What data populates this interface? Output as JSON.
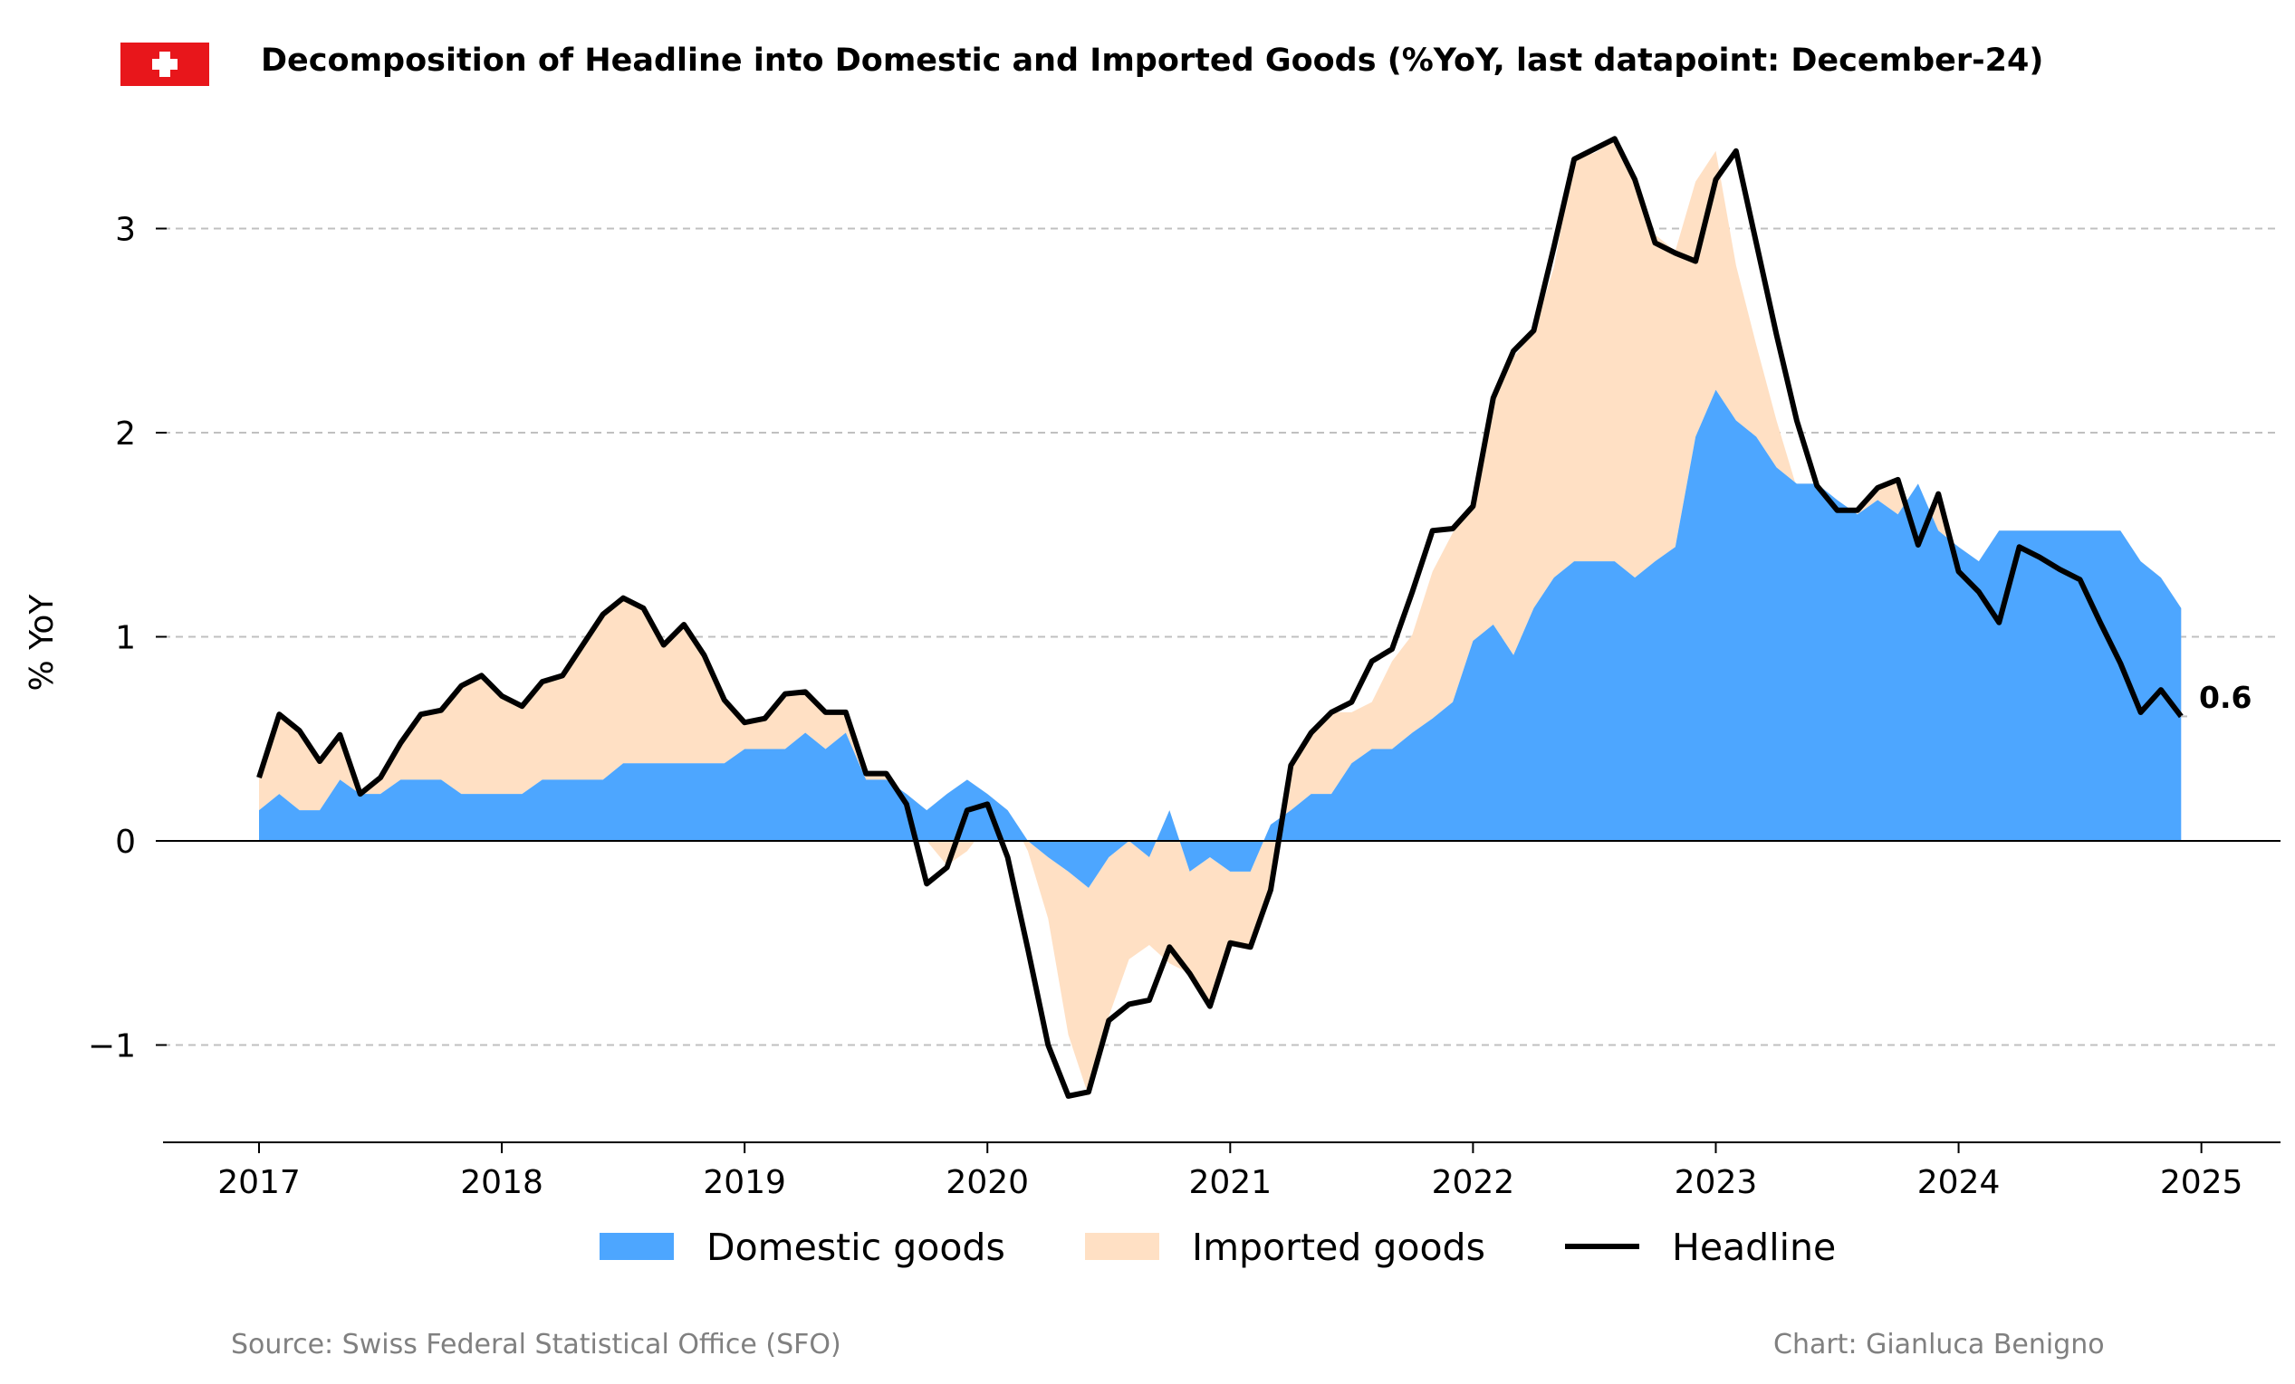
{
  "chart_data": {
    "type": "area",
    "title": "Decomposition of Headline into Domestic and Imported Goods (%YoY, last datapoint: December-24)",
    "ylabel": "% YoY",
    "xlabel": "",
    "xlim": [
      "2016-08",
      "2025-03"
    ],
    "ylim": [
      -1.5,
      3.5
    ],
    "x_ticks": [
      "2017",
      "2018",
      "2019",
      "2020",
      "2021",
      "2022",
      "2023",
      "2024",
      "2025"
    ],
    "y_ticks": [
      -1,
      0,
      1,
      2,
      3
    ],
    "y_tick_labels": [
      "−1",
      "0",
      "1",
      "2",
      "3"
    ],
    "grid": "horizontal dashed",
    "legend_position": "bottom-center",
    "colors": {
      "domestic": "#4da6ff",
      "imported": "#ffe0c4",
      "headline": "#000000",
      "grid": "#c0c0c0",
      "flag_red": "#e8161b",
      "footer": "#808080"
    },
    "start_month": "2017-01",
    "x": [
      "2017-01",
      "2017-02",
      "2017-03",
      "2017-04",
      "2017-05",
      "2017-06",
      "2017-07",
      "2017-08",
      "2017-09",
      "2017-10",
      "2017-11",
      "2017-12",
      "2018-01",
      "2018-02",
      "2018-03",
      "2018-04",
      "2018-05",
      "2018-06",
      "2018-07",
      "2018-08",
      "2018-09",
      "2018-10",
      "2018-11",
      "2018-12",
      "2019-01",
      "2019-02",
      "2019-03",
      "2019-04",
      "2019-05",
      "2019-06",
      "2019-07",
      "2019-08",
      "2019-09",
      "2019-10",
      "2019-11",
      "2019-12",
      "2020-01",
      "2020-02",
      "2020-03",
      "2020-04",
      "2020-05",
      "2020-06",
      "2020-07",
      "2020-08",
      "2020-09",
      "2020-10",
      "2020-11",
      "2020-12",
      "2021-01",
      "2021-02",
      "2021-03",
      "2021-04",
      "2021-05",
      "2021-06",
      "2021-07",
      "2021-08",
      "2021-09",
      "2021-10",
      "2021-11",
      "2021-12",
      "2022-01",
      "2022-02",
      "2022-03",
      "2022-04",
      "2022-05",
      "2022-06",
      "2022-07",
      "2022-08",
      "2022-09",
      "2022-10",
      "2022-11",
      "2022-12",
      "2023-01",
      "2023-02",
      "2023-03",
      "2023-04",
      "2023-05",
      "2023-06",
      "2023-07",
      "2023-08",
      "2023-09",
      "2023-10",
      "2023-11",
      "2023-12",
      "2024-01",
      "2024-02",
      "2024-03",
      "2024-04",
      "2024-05",
      "2024-06",
      "2024-07",
      "2024-08",
      "2024-09",
      "2024-10",
      "2024-11",
      "2024-12"
    ],
    "series": [
      {
        "name": "Domestic goods",
        "type": "area",
        "values": [
          0.15,
          0.23,
          0.15,
          0.15,
          0.3,
          0.23,
          0.23,
          0.3,
          0.3,
          0.3,
          0.23,
          0.23,
          0.23,
          0.23,
          0.3,
          0.3,
          0.3,
          0.3,
          0.38,
          0.38,
          0.38,
          0.38,
          0.38,
          0.38,
          0.45,
          0.45,
          0.45,
          0.53,
          0.45,
          0.53,
          0.3,
          0.3,
          0.23,
          0.15,
          0.23,
          0.3,
          0.23,
          0.15,
          0.0,
          -0.08,
          -0.15,
          -0.23,
          -0.08,
          0.0,
          -0.08,
          0.15,
          -0.15,
          -0.08,
          -0.15,
          -0.15,
          0.08,
          0.15,
          0.23,
          0.23,
          0.38,
          0.45,
          0.45,
          0.53,
          0.6,
          0.68,
          0.98,
          1.06,
          0.91,
          1.14,
          1.29,
          1.37,
          1.37,
          1.37,
          1.29,
          1.37,
          1.44,
          1.98,
          2.21,
          2.06,
          1.98,
          1.83,
          1.75,
          1.75,
          1.67,
          1.6,
          1.67,
          1.6,
          1.75,
          1.52,
          1.44,
          1.37,
          1.52,
          1.52,
          1.52,
          1.52,
          1.52,
          1.52,
          1.52,
          1.37,
          1.29,
          1.14
        ]
      },
      {
        "name": "Imported goods",
        "type": "area",
        "values": [
          0.16,
          0.39,
          0.39,
          0.24,
          0.22,
          0.0,
          0.08,
          0.18,
          0.32,
          0.34,
          0.53,
          0.58,
          0.48,
          0.43,
          0.48,
          0.51,
          0.66,
          0.81,
          0.81,
          0.76,
          0.58,
          0.68,
          0.53,
          0.31,
          0.13,
          0.15,
          0.27,
          0.2,
          0.18,
          0.1,
          0.03,
          0.03,
          -0.05,
          -0.15,
          -0.35,
          -0.35,
          -0.15,
          0.0,
          -0.05,
          -0.3,
          -0.8,
          -1.02,
          -0.78,
          -0.58,
          -0.43,
          -0.75,
          -0.5,
          -0.73,
          -0.35,
          -0.37,
          -0.33,
          0.2,
          0.3,
          0.4,
          0.25,
          0.23,
          0.43,
          0.48,
          0.72,
          0.83,
          0.65,
          1.09,
          1.46,
          1.35,
          1.52,
          1.98,
          2.0,
          2.06,
          1.95,
          1.6,
          1.45,
          1.25,
          1.17,
          0.76,
          0.45,
          0.23,
          -0.02,
          -0.14,
          -0.07,
          0.0,
          0.05,
          0.17,
          -0.3,
          0.18,
          -0.12,
          -0.16,
          -0.3,
          -0.08,
          -0.13,
          -0.19,
          -0.24,
          -0.45,
          -0.65,
          -0.74,
          -0.55,
          -0.53
        ]
      },
      {
        "name": "Headline",
        "type": "line",
        "values": [
          0.31,
          0.62,
          0.54,
          0.39,
          0.52,
          0.23,
          0.31,
          0.48,
          0.62,
          0.64,
          0.76,
          0.81,
          0.71,
          0.66,
          0.78,
          0.81,
          0.96,
          1.11,
          1.19,
          1.14,
          0.96,
          1.06,
          0.91,
          0.69,
          0.58,
          0.6,
          0.72,
          0.73,
          0.63,
          0.63,
          0.33,
          0.33,
          0.18,
          -0.21,
          -0.13,
          0.15,
          0.18,
          -0.08,
          -0.53,
          -1.0,
          -1.25,
          -1.23,
          -0.88,
          -0.8,
          -0.78,
          -0.52,
          -0.65,
          -0.81,
          -0.5,
          -0.52,
          -0.24,
          0.37,
          0.53,
          0.63,
          0.68,
          0.88,
          0.94,
          1.22,
          1.52,
          1.53,
          1.64,
          2.17,
          2.4,
          2.5,
          2.91,
          3.34,
          3.39,
          3.44,
          3.24,
          2.93,
          2.88,
          2.84,
          3.24,
          3.38,
          2.93,
          2.48,
          2.06,
          1.74,
          1.62,
          1.62,
          1.73,
          1.77,
          1.45,
          1.7,
          1.32,
          1.22,
          1.07,
          1.44,
          1.39,
          1.33,
          1.28,
          1.07,
          0.87,
          0.63,
          0.74,
          0.61
        ]
      }
    ],
    "last_value_label": "0.6",
    "legend": [
      "Domestic goods",
      "Imported goods",
      "Headline"
    ]
  },
  "footer": {
    "source": "Source: Swiss Federal Statistical Office (SFO)",
    "credit": "Chart: Gianluca Benigno"
  }
}
